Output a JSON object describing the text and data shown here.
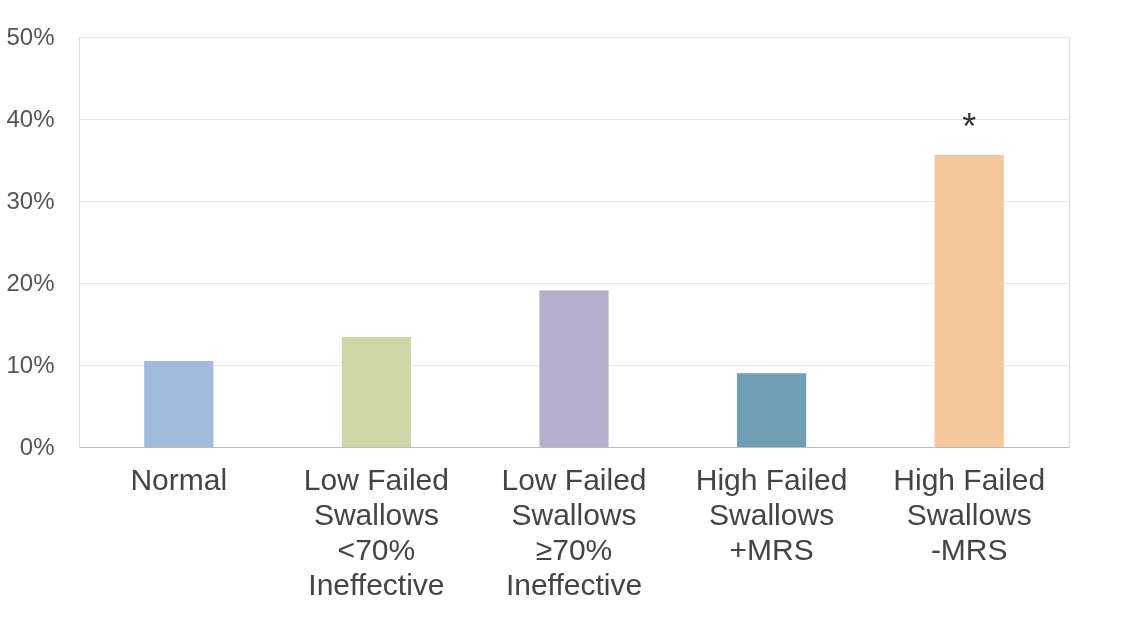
{
  "chart_data": {
    "type": "bar",
    "categories": [
      "Normal",
      "Low Failed\nSwallows\n<70%\nIneffective",
      "Low Failed\nSwallows\n≥70%\nIneffective",
      "High Failed\nSwallows\n+MRS",
      "High Failed\nSwallows\n-MRS"
    ],
    "values": [
      10.5,
      13.4,
      19.1,
      9.0,
      35.6
    ],
    "colors": [
      "#a1bbdc",
      "#cfd7a6",
      "#b7aecd",
      "#6f9fb4",
      "#f6c79a"
    ],
    "ylim": [
      0,
      50
    ],
    "yticks": [
      {
        "value": 0,
        "label": "0%"
      },
      {
        "value": 10,
        "label": "10%"
      },
      {
        "value": 20,
        "label": "20%"
      },
      {
        "value": 30,
        "label": "30%"
      },
      {
        "value": 40,
        "label": "40%"
      },
      {
        "value": 50,
        "label": "50%"
      }
    ],
    "grid": "y",
    "annotations": [
      "*"
    ]
  }
}
